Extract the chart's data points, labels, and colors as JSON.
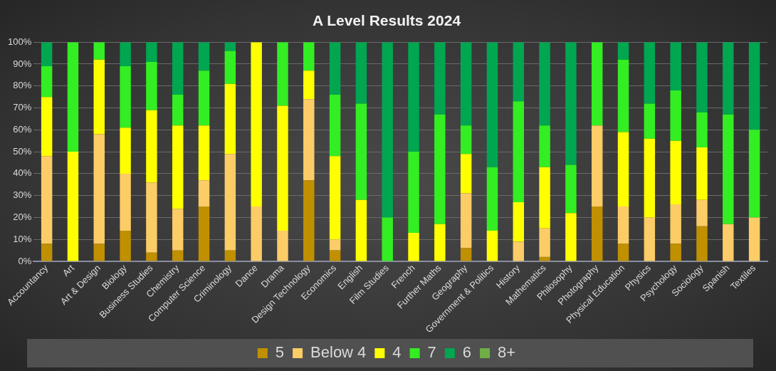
{
  "chart_data": {
    "type": "bar",
    "title": "A Level Results 2024",
    "stacked": true,
    "categories": [
      "Accountancy",
      "Art",
      "Art & Design",
      "Biology",
      "Business Studies",
      "Chemistry",
      "Computer Science",
      "Criminology",
      "Dance",
      "Drama",
      "Design Technology",
      "Economics",
      "English",
      "Film Studies",
      "French",
      "Further Maths",
      "Geography",
      "Government & Politics",
      "History",
      "Mathematics",
      "Philosophy",
      "Photography",
      "Physical Education",
      "Physics",
      "Psychology",
      "Sociology",
      "Spanish",
      "Textiles"
    ],
    "series": [
      {
        "name": "5",
        "color": "#c09000",
        "values": [
          8,
          0,
          8,
          14,
          4,
          5,
          25,
          5,
          0,
          0,
          37,
          5,
          0,
          0,
          0,
          0,
          6,
          0,
          0,
          2,
          0,
          25,
          8,
          0,
          8,
          16,
          0,
          0
        ]
      },
      {
        "name": "Below 4",
        "color": "#fccc66",
        "values": [
          40,
          0,
          50,
          26,
          32,
          19,
          12,
          44,
          25,
          14,
          37,
          5,
          0,
          0,
          0,
          0,
          25,
          0,
          9,
          13,
          0,
          37,
          17,
          20,
          18,
          12,
          17,
          20
        ]
      },
      {
        "name": "4",
        "color": "#ffff00",
        "values": [
          27,
          50,
          34,
          21,
          33,
          38,
          25,
          32,
          75,
          57,
          13,
          38,
          28,
          0,
          13,
          17,
          18,
          14,
          18,
          28,
          22,
          0,
          34,
          36,
          29,
          24,
          0,
          0
        ]
      },
      {
        "name": "7",
        "color": "#33ee22",
        "values": [
          14,
          50,
          8,
          28,
          22,
          14,
          25,
          15,
          0,
          29,
          13,
          28,
          44,
          20,
          37,
          50,
          13,
          29,
          46,
          19,
          22,
          38,
          33,
          16,
          23,
          16,
          50,
          40
        ]
      },
      {
        "name": "6",
        "color": "#00a650",
        "values": [
          11,
          0,
          0,
          11,
          9,
          24,
          13,
          4,
          0,
          0,
          0,
          24,
          28,
          80,
          50,
          33,
          38,
          57,
          27,
          38,
          56,
          0,
          8,
          28,
          22,
          32,
          33,
          40
        ]
      },
      {
        "name": "8+",
        "color": "#70ad47",
        "values": [
          0,
          0,
          0,
          0,
          0,
          0,
          0,
          0,
          0,
          0,
          0,
          0,
          0,
          0,
          0,
          0,
          0,
          0,
          0,
          0,
          0,
          0,
          0,
          0,
          0,
          0,
          0,
          0
        ]
      }
    ],
    "ylim": [
      0,
      100
    ],
    "yticks": [
      {
        "value": 0,
        "label": "0%"
      },
      {
        "value": 10,
        "label": "10%"
      },
      {
        "value": 20,
        "label": "20%"
      },
      {
        "value": 30,
        "label": "30%"
      },
      {
        "value": 40,
        "label": "40%"
      },
      {
        "value": 50,
        "label": "50%"
      },
      {
        "value": 60,
        "label": "60%"
      },
      {
        "value": 70,
        "label": "70%"
      },
      {
        "value": 80,
        "label": "80%"
      },
      {
        "value": 90,
        "label": "90%"
      },
      {
        "value": 100,
        "label": "100%"
      }
    ],
    "grid": "y",
    "legend": "bottom"
  }
}
